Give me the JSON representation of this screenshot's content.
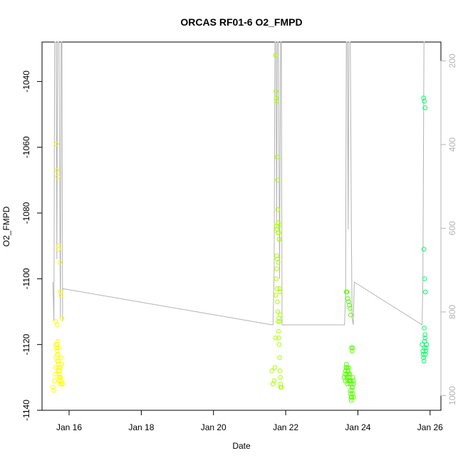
{
  "chart_data": {
    "type": "scatter",
    "title": "ORCAS RF01-6 O2_FMPD",
    "xlabel": "Date",
    "ylabel": "O2_FMPD",
    "x_ticks": [
      "Jan 16",
      "Jan 18",
      "Jan 20",
      "Jan 22",
      "Jan 24",
      "Jan 26"
    ],
    "x_tick_days": [
      16,
      18,
      20,
      22,
      24,
      26
    ],
    "xlim_days": [
      15.25,
      26.3
    ],
    "y_ticks": [
      -1140,
      -1120,
      -1100,
      -1080,
      -1060,
      -1040
    ],
    "ylim": [
      -1140,
      -1028
    ],
    "y2_ticks": [
      200,
      400,
      600,
      800,
      1000
    ],
    "y2lim": [
      1035,
      155
    ],
    "grid": false,
    "colors": {
      "flight1": "#ffff00",
      "flight2": "#aaff00",
      "flight3": "#55ff00",
      "flight4": "#00ff66",
      "pressure_line": "#b3b3b3"
    },
    "series": [
      {
        "color_key": "flight1",
        "x": [
          15.55,
          15.58,
          15.6,
          15.62,
          15.63,
          15.64,
          15.65,
          15.66,
          15.67,
          15.68,
          15.69,
          15.7,
          15.71,
          15.72,
          15.73,
          15.74,
          15.75,
          15.76,
          15.77,
          15.78,
          15.8,
          15.82,
          15.65,
          15.66,
          15.68,
          15.7,
          15.72,
          15.74,
          15.76,
          15.78,
          15.63,
          15.67,
          15.69,
          15.71,
          15.73,
          15.75,
          15.77,
          15.79,
          15.64,
          15.66,
          15.68,
          15.7,
          15.72,
          15.74,
          15.76,
          15.78,
          15.8
        ],
        "y": [
          -1133,
          -1134,
          -1131,
          -1129,
          -1127,
          -1124,
          -1121,
          -1120,
          -1122,
          -1125,
          -1123,
          -1126,
          -1128,
          -1131,
          -1130,
          -1129,
          -1127,
          -1132,
          -1131,
          -1124,
          -1112,
          -1132,
          -1059,
          -1067,
          -1069,
          -1091,
          -1090,
          -1095,
          -1104,
          -1105,
          -1113,
          -1114,
          -1119,
          -1121,
          -1128,
          -1130,
          -1131,
          -1132,
          -1120,
          -1121,
          -1123,
          -1125,
          -1127,
          -1129,
          -1130,
          -1131,
          -1126
        ]
      },
      {
        "color_key": "flight2",
        "x": [
          21.62,
          21.65,
          21.68,
          21.7,
          21.72,
          21.73,
          21.74,
          21.75,
          21.76,
          21.77,
          21.78,
          21.79,
          21.8,
          21.81,
          21.82,
          21.83,
          21.84,
          21.85,
          21.86,
          21.72,
          21.73,
          21.74,
          21.75,
          21.76,
          21.77,
          21.78,
          21.79,
          21.8,
          21.81,
          21.82,
          21.83,
          21.84,
          21.85,
          21.75,
          21.77,
          21.79,
          21.81,
          21.83,
          21.86,
          21.88,
          21.74,
          21.76,
          21.78,
          21.8,
          21.82
        ],
        "y": [
          -1128,
          -1132,
          -1131,
          -1127,
          -1118,
          -1105,
          -1100,
          -1097,
          -1103,
          -1107,
          -1110,
          -1113,
          -1116,
          -1118,
          -1120,
          -1124,
          -1128,
          -1130,
          -1132,
          -1032,
          -1043,
          -1045,
          -1046,
          -1063,
          -1070,
          -1079,
          -1083,
          -1084,
          -1086,
          -1088,
          -1103,
          -1104,
          -1111,
          -1093,
          -1094,
          -1095,
          -1112,
          -1113,
          -1133,
          -1133,
          -1084,
          -1085,
          -1086,
          -1083,
          -1088
        ]
      },
      {
        "color_key": "flight3",
        "x": [
          23.62,
          23.64,
          23.65,
          23.66,
          23.67,
          23.68,
          23.69,
          23.7,
          23.71,
          23.72,
          23.73,
          23.74,
          23.75,
          23.76,
          23.77,
          23.78,
          23.79,
          23.8,
          23.81,
          23.82,
          23.83,
          23.84,
          23.85,
          23.86,
          23.87,
          23.88,
          23.68,
          23.7,
          23.72,
          23.74,
          23.76,
          23.78,
          23.8,
          23.82,
          23.84,
          23.86,
          23.7,
          23.72,
          23.74,
          23.76,
          23.78,
          23.8,
          23.82,
          23.84,
          23.86,
          23.88
        ],
        "y": [
          -1130,
          -1129,
          -1131,
          -1128,
          -1127,
          -1126,
          -1129,
          -1130,
          -1132,
          -1131,
          -1128,
          -1127,
          -1130,
          -1131,
          -1129,
          -1132,
          -1134,
          -1135,
          -1136,
          -1137,
          -1136,
          -1134,
          -1133,
          -1130,
          -1131,
          -1132,
          -1104,
          -1104,
          -1106,
          -1107,
          -1108,
          -1109,
          -1111,
          -1121,
          -1122,
          -1121,
          -1127,
          -1128,
          -1129,
          -1130,
          -1131,
          -1131,
          -1132,
          -1133,
          -1135,
          -1136
        ]
      },
      {
        "color_key": "flight4",
        "x": [
          25.78,
          25.8,
          25.81,
          25.82,
          25.83,
          25.84,
          25.85,
          25.86,
          25.87,
          25.88,
          25.89,
          25.9,
          25.82,
          25.84,
          25.86,
          25.83,
          25.85,
          25.87,
          25.84,
          25.86
        ],
        "y": [
          -1120,
          -1122,
          -1123,
          -1124,
          -1125,
          -1121,
          -1119,
          -1118,
          -1123,
          -1122,
          -1121,
          -1120,
          -1045,
          -1046,
          -1048,
          -1091,
          -1100,
          -1104,
          -1115,
          -1117
        ]
      }
    ],
    "pressure_line_points": [
      [
        15.55,
        -1101
      ],
      [
        15.58,
        -1113
      ],
      [
        15.6,
        -1028
      ],
      [
        15.64,
        -1028
      ],
      [
        15.66,
        -1094
      ],
      [
        15.68,
        -1028
      ],
      [
        15.72,
        -1028
      ],
      [
        15.76,
        -1112
      ],
      [
        15.78,
        -1028
      ],
      [
        15.8,
        -1028
      ],
      [
        15.82,
        -1113
      ],
      [
        15.82,
        -1103
      ],
      [
        21.62,
        -1114
      ],
      [
        21.65,
        -1114
      ],
      [
        21.68,
        -1097
      ],
      [
        21.7,
        -1028
      ],
      [
        21.73,
        -1028
      ],
      [
        21.75,
        -1083
      ],
      [
        21.77,
        -1028
      ],
      [
        21.8,
        -1028
      ],
      [
        21.83,
        -1100
      ],
      [
        21.86,
        -1028
      ],
      [
        21.88,
        -1028
      ],
      [
        21.9,
        -1114
      ],
      [
        23.63,
        -1114
      ],
      [
        23.66,
        -1104
      ],
      [
        23.68,
        -1028
      ],
      [
        23.71,
        -1028
      ],
      [
        23.73,
        -1085
      ],
      [
        23.75,
        -1028
      ],
      [
        23.79,
        -1028
      ],
      [
        23.82,
        -1086
      ],
      [
        23.84,
        -1112
      ],
      [
        23.87,
        -1114
      ],
      [
        23.9,
        -1101
      ],
      [
        25.78,
        -1114
      ],
      [
        25.8,
        -1100
      ],
      [
        25.83,
        -1028
      ],
      [
        25.85,
        -1028
      ]
    ]
  }
}
